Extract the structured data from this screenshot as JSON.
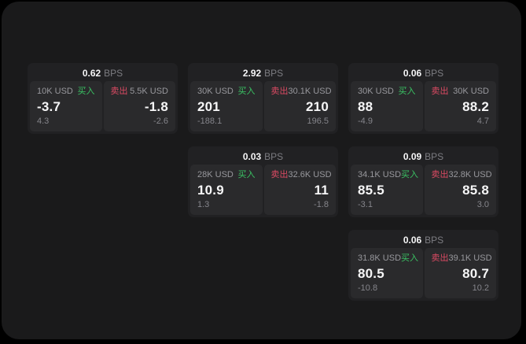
{
  "labels": {
    "bps": "BPS",
    "buy": "买入",
    "sell": "卖出"
  },
  "colors": {
    "buy": "#3ac263",
    "sell": "#dc4a63",
    "window_bg": "#1a1a1b",
    "card_bg": "#212123",
    "panel_bg": "#2a2a2c"
  },
  "cards": [
    {
      "bps": "0.62",
      "buy": {
        "amount": "10K USD",
        "price": "-3.7",
        "delta": "4.3"
      },
      "sell": {
        "amount": "5.5K USD",
        "price": "-1.8",
        "delta": "-2.6"
      }
    },
    {
      "bps": "2.92",
      "buy": {
        "amount": "30K USD",
        "price": "201",
        "delta": "-188.1"
      },
      "sell": {
        "amount": "30.1K USD",
        "price": "210",
        "delta": "196.5"
      }
    },
    {
      "bps": "0.06",
      "buy": {
        "amount": "30K USD",
        "price": "88",
        "delta": "-4.9"
      },
      "sell": {
        "amount": "30K USD",
        "price": "88.2",
        "delta": "4.7"
      }
    },
    {
      "bps": "0.03",
      "buy": {
        "amount": "28K USD",
        "price": "10.9",
        "delta": "1.3"
      },
      "sell": {
        "amount": "32.6K USD",
        "price": "11",
        "delta": "-1.8"
      }
    },
    {
      "bps": "0.09",
      "buy": {
        "amount": "34.1K USD",
        "price": "85.5",
        "delta": "-3.1"
      },
      "sell": {
        "amount": "32.8K USD",
        "price": "85.8",
        "delta": "3.0"
      }
    },
    {
      "bps": "0.06",
      "buy": {
        "amount": "31.8K USD",
        "price": "80.5",
        "delta": "-10.8"
      },
      "sell": {
        "amount": "39.1K USD",
        "price": "80.7",
        "delta": "10.2"
      }
    }
  ]
}
